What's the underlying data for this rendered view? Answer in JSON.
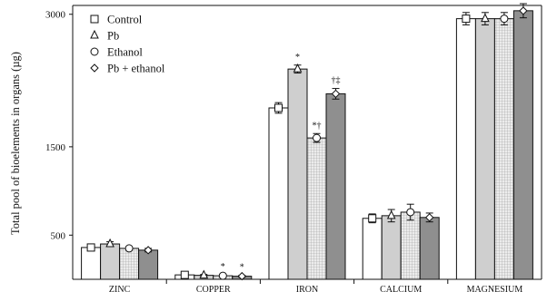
{
  "chart_data": {
    "type": "bar",
    "ylabel": "Total pool of bioelements in organs (µg)",
    "xlabel": "",
    "categories": [
      "ZINC",
      "COPPER",
      "IRON",
      "CALCIUM",
      "MAGNESIUM"
    ],
    "ylim": [
      0,
      3100
    ],
    "yticks": [
      500,
      1500,
      3000
    ],
    "legend_position": "top-left",
    "series": [
      {
        "name": "Control",
        "marker": "square",
        "fill": "#ffffff",
        "values": [
          360,
          50,
          1940,
          690,
          2950
        ],
        "errors": [
          25,
          10,
          60,
          50,
          70
        ]
      },
      {
        "name": "Pb",
        "marker": "triangle",
        "fill": "#cfcfcf",
        "values": [
          400,
          45,
          2380,
          720,
          2950
        ],
        "errors": [
          25,
          10,
          45,
          70,
          70
        ]
      },
      {
        "name": "Ethanol",
        "marker": "circle",
        "fill": "#e2e2e2",
        "pattern": "grid",
        "values": [
          350,
          40,
          1600,
          760,
          2950
        ],
        "errors": [
          20,
          10,
          50,
          90,
          70
        ]
      },
      {
        "name": "Pb + ethanol",
        "marker": "diamond",
        "fill": "#8f8f8f",
        "values": [
          330,
          35,
          2100,
          700,
          3040
        ],
        "errors": [
          20,
          10,
          60,
          50,
          80
        ]
      }
    ],
    "annotations": [
      {
        "category": "COPPER",
        "series": "Ethanol",
        "text": "*"
      },
      {
        "category": "COPPER",
        "series": "Pb + ethanol",
        "text": "*"
      },
      {
        "category": "IRON",
        "series": "Pb",
        "text": "*"
      },
      {
        "category": "IRON",
        "series": "Ethanol",
        "text": "*†"
      },
      {
        "category": "IRON",
        "series": "Pb + ethanol",
        "text": "†‡"
      }
    ]
  }
}
